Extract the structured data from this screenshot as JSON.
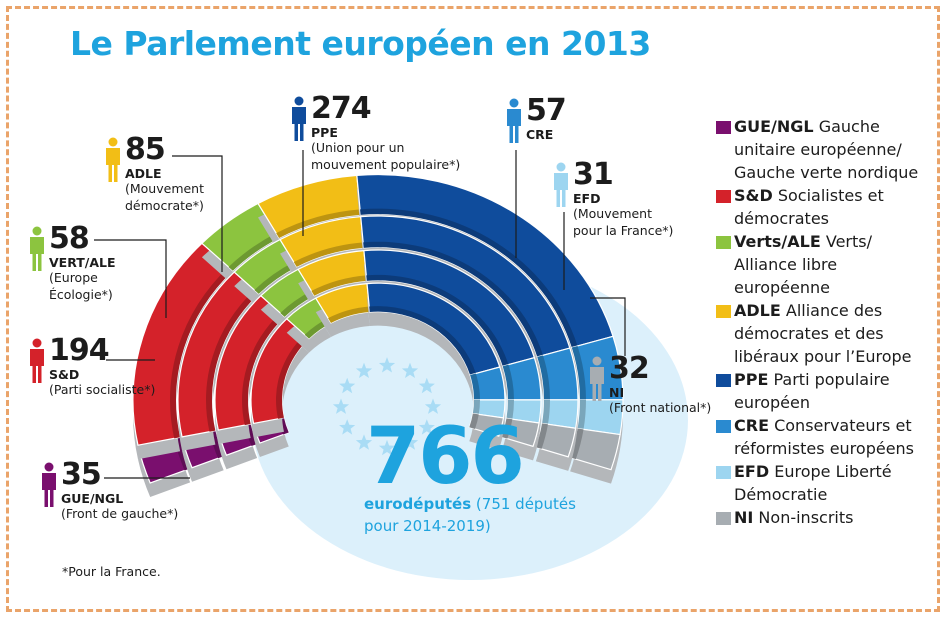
{
  "title": "Le Parlement européen en 2013",
  "footnote": "*Pour la France.",
  "total": {
    "value": "766",
    "label_bold": "eurodéputés",
    "label_rest": " (751 députés pour 2014-2019)"
  },
  "colors": {
    "GUE/NGL": "#7a0f6e",
    "S&D": "#d4222a",
    "Verts/ALE": "#8cc43f",
    "ADLE": "#f2be16",
    "PPE": "#0f4c9c",
    "CRE": "#2a8ad0",
    "EFD": "#9dd5f0",
    "NI": "#a7adb2",
    "title": "#1ea3de",
    "floor": "#dcf0fb",
    "border": "#eaa46a"
  },
  "labels": [
    {
      "key": "GUE/NGL",
      "num": "35",
      "group": "GUE/NGL",
      "sub": "(Front de gauche*)"
    },
    {
      "key": "S&D",
      "num": "194",
      "group": "S&D",
      "sub": "(Parti socialiste*)"
    },
    {
      "key": "Verts/ALE",
      "num": "58",
      "group": "VERT/ALE",
      "sub": "(Europe Écologie*)"
    },
    {
      "key": "ADLE",
      "num": "85",
      "group": "ADLE",
      "sub": "(Mouvement démocrate*)"
    },
    {
      "key": "PPE",
      "num": "274",
      "group": "PPE",
      "sub": "(Union pour un mouvement populaire*)"
    },
    {
      "key": "CRE",
      "num": "57",
      "group": "CRE",
      "sub": ""
    },
    {
      "key": "EFD",
      "num": "31",
      "group": "EFD",
      "sub": "(Mouvement pour la France*)"
    },
    {
      "key": "NI",
      "num": "32",
      "group": "NI",
      "sub": "(Front national*)"
    }
  ],
  "legend": [
    {
      "key": "GUE/NGL",
      "abbr": "GUE/NGL",
      "name": "Gauche unitaire européenne/ Gauche verte nordique"
    },
    {
      "key": "S&D",
      "abbr": "S&D",
      "name": "Socialistes et démocrates"
    },
    {
      "key": "Verts/ALE",
      "abbr": "Verts/ALE",
      "name": "Verts/ Alliance libre européenne"
    },
    {
      "key": "ADLE",
      "abbr": "ADLE",
      "name": "Alliance des démocrates et des libéraux pour l’Europe"
    },
    {
      "key": "PPE",
      "abbr": "PPE",
      "name": "Parti populaire européen"
    },
    {
      "key": "CRE",
      "abbr": "CRE",
      "name": "Conservateurs et réformistes européens"
    },
    {
      "key": "EFD",
      "abbr": "EFD",
      "name": "Europe Liberté Démocratie"
    },
    {
      "key": "NI",
      "abbr": "NI",
      "name": "Non-inscrits"
    }
  ],
  "chart_data": {
    "type": "pie",
    "subtype": "hemicycle",
    "title": "Le Parlement européen en 2013",
    "categories": [
      "GUE/NGL",
      "S&D",
      "Verts/ALE",
      "ADLE",
      "PPE",
      "CRE",
      "EFD",
      "NI"
    ],
    "values": [
      35,
      194,
      58,
      85,
      274,
      57,
      31,
      32
    ],
    "total": 766,
    "legend_position": "right"
  }
}
